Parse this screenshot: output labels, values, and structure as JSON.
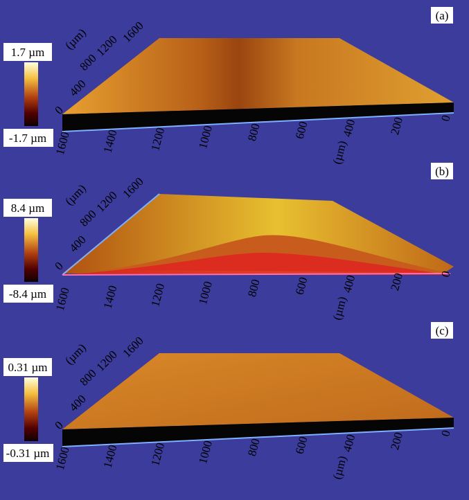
{
  "panels": [
    {
      "label": "(a)",
      "scale_max": "1.7 µm",
      "scale_min": "-1.7 µm",
      "depth_ticks": [
        0,
        400,
        800,
        1200,
        1600
      ],
      "depth_unit": "(µm)",
      "x_ticks": [
        1600,
        1400,
        1200,
        1000,
        800,
        600,
        400,
        200,
        0
      ],
      "x_unit": "(µm)"
    },
    {
      "label": "(b)",
      "scale_max": "8.4 µm",
      "scale_min": "-8.4 µm",
      "depth_ticks": [
        0,
        400,
        800,
        1200,
        1600
      ],
      "depth_unit": "(µm)",
      "x_ticks": [
        1600,
        1400,
        1200,
        1000,
        800,
        600,
        400,
        200,
        0
      ],
      "x_unit": "(µm)"
    },
    {
      "label": "(c)",
      "scale_max": "0.31 µm",
      "scale_min": "-0.31 µm",
      "depth_ticks": [
        0,
        400,
        800,
        1200,
        1600
      ],
      "depth_unit": "(µm)",
      "x_ticks": [
        1600,
        1400,
        1200,
        1000,
        800,
        600,
        400,
        200,
        0
      ],
      "x_unit": "(µm)"
    }
  ]
}
